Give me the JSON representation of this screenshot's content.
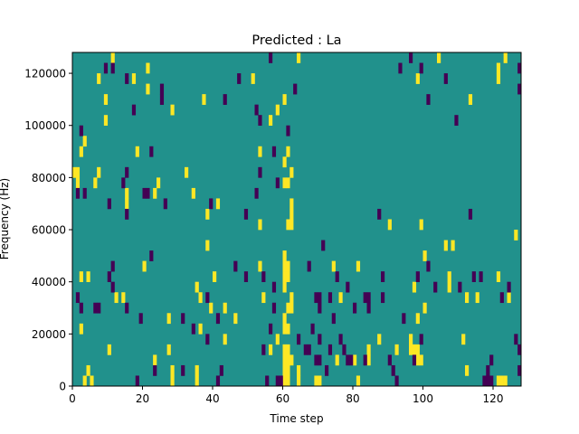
{
  "chart_data": {
    "type": "heatmap",
    "title": "Predicted : La",
    "xlabel": "Time step",
    "ylabel": "Frequency (Hz)",
    "xlim": [
      0,
      128
    ],
    "ylim": [
      0,
      128000
    ],
    "n_time_steps": 128,
    "n_freq_bins": 32,
    "bin_hz": 4000,
    "xticks": [
      0,
      20,
      40,
      60,
      80,
      100,
      120
    ],
    "yticks": [
      0,
      20000,
      40000,
      60000,
      80000,
      100000,
      120000
    ],
    "colormap": {
      "low": "#440154",
      "mid": "#21918c",
      "high": "#fde725"
    },
    "default_level": "mid",
    "high_cells": [
      [
        11,
        31
      ],
      [
        64,
        31
      ],
      [
        104,
        31
      ],
      [
        123,
        31
      ],
      [
        21,
        30
      ],
      [
        121,
        30
      ],
      [
        7,
        29
      ],
      [
        17,
        29
      ],
      [
        51,
        29
      ],
      [
        98,
        29
      ],
      [
        121,
        29
      ],
      [
        21,
        28
      ],
      [
        9,
        27
      ],
      [
        37,
        27
      ],
      [
        60,
        27
      ],
      [
        113,
        27
      ],
      [
        28,
        26
      ],
      [
        58,
        26
      ],
      [
        9,
        25
      ],
      [
        56,
        25
      ],
      [
        3,
        23
      ],
      [
        2,
        22
      ],
      [
        18,
        22
      ],
      [
        53,
        22
      ],
      [
        61,
        22
      ],
      [
        60,
        21
      ],
      [
        0,
        20
      ],
      [
        1,
        20
      ],
      [
        7,
        20
      ],
      [
        32,
        20
      ],
      [
        62,
        20
      ],
      [
        1,
        19
      ],
      [
        6,
        19
      ],
      [
        24,
        19
      ],
      [
        60,
        19
      ],
      [
        61,
        19
      ],
      [
        15,
        18
      ],
      [
        23,
        18
      ],
      [
        34,
        18
      ],
      [
        15,
        17
      ],
      [
        41,
        17
      ],
      [
        62,
        17
      ],
      [
        38,
        16
      ],
      [
        62,
        16
      ],
      [
        62,
        15
      ],
      [
        53,
        15
      ],
      [
        61,
        15
      ],
      [
        90,
        15
      ],
      [
        99,
        15
      ],
      [
        38,
        13
      ],
      [
        106,
        13
      ],
      [
        108,
        13
      ],
      [
        126,
        14
      ],
      [
        100,
        12
      ],
      [
        20,
        11
      ],
      [
        53,
        11
      ],
      [
        60,
        11
      ],
      [
        60,
        12
      ],
      [
        61,
        11
      ],
      [
        74,
        11
      ],
      [
        81,
        11
      ],
      [
        2,
        10
      ],
      [
        4,
        10
      ],
      [
        40,
        10
      ],
      [
        60,
        10
      ],
      [
        61,
        10
      ],
      [
        107,
        10
      ],
      [
        121,
        10
      ],
      [
        35,
        9
      ],
      [
        60,
        9
      ],
      [
        97,
        9
      ],
      [
        107,
        9
      ],
      [
        12,
        8
      ],
      [
        14,
        8
      ],
      [
        36,
        8
      ],
      [
        54,
        8
      ],
      [
        62,
        8
      ],
      [
        76,
        8
      ],
      [
        112,
        8
      ],
      [
        115,
        8
      ],
      [
        124,
        8
      ],
      [
        39,
        7
      ],
      [
        43,
        7
      ],
      [
        61,
        7
      ],
      [
        62,
        7
      ],
      [
        100,
        7
      ],
      [
        27,
        6
      ],
      [
        46,
        6
      ],
      [
        60,
        6
      ],
      [
        98,
        6
      ],
      [
        2,
        5
      ],
      [
        36,
        5
      ],
      [
        60,
        5
      ],
      [
        61,
        5
      ],
      [
        43,
        4
      ],
      [
        58,
        4
      ],
      [
        87,
        4
      ],
      [
        96,
        4
      ],
      [
        111,
        4
      ],
      [
        10,
        3
      ],
      [
        27,
        3
      ],
      [
        56,
        3
      ],
      [
        60,
        3
      ],
      [
        61,
        3
      ],
      [
        84,
        3
      ],
      [
        92,
        3
      ],
      [
        96,
        3
      ],
      [
        97,
        3
      ],
      [
        98,
        3
      ],
      [
        23,
        2
      ],
      [
        60,
        2
      ],
      [
        61,
        2
      ],
      [
        62,
        2
      ],
      [
        75,
        2
      ],
      [
        80,
        2
      ],
      [
        84,
        2
      ],
      [
        98,
        2
      ],
      [
        99,
        2
      ],
      [
        4,
        1
      ],
      [
        28,
        1
      ],
      [
        35,
        1
      ],
      [
        60,
        1
      ],
      [
        61,
        1
      ],
      [
        64,
        1
      ],
      [
        112,
        1
      ],
      [
        3,
        0
      ],
      [
        5,
        0
      ],
      [
        28,
        0
      ],
      [
        35,
        0
      ],
      [
        60,
        0
      ],
      [
        61,
        0
      ],
      [
        64,
        0
      ],
      [
        69,
        0
      ],
      [
        70,
        0
      ],
      [
        81,
        0
      ],
      [
        121,
        0
      ],
      [
        122,
        0
      ],
      [
        123,
        0
      ]
    ],
    "low_cells": [
      [
        56,
        31
      ],
      [
        96,
        31
      ],
      [
        9,
        30
      ],
      [
        11,
        30
      ],
      [
        93,
        30
      ],
      [
        99,
        30
      ],
      [
        127,
        30
      ],
      [
        15,
        29
      ],
      [
        47,
        29
      ],
      [
        106,
        29
      ],
      [
        25,
        28
      ],
      [
        63,
        28
      ],
      [
        127,
        28
      ],
      [
        25,
        27
      ],
      [
        43,
        27
      ],
      [
        101,
        27
      ],
      [
        17,
        26
      ],
      [
        52,
        26
      ],
      [
        53,
        25
      ],
      [
        109,
        25
      ],
      [
        2,
        24
      ],
      [
        61,
        24
      ],
      [
        22,
        22
      ],
      [
        57,
        22
      ],
      [
        15,
        20
      ],
      [
        53,
        20
      ],
      [
        14,
        19
      ],
      [
        58,
        19
      ],
      [
        1,
        18
      ],
      [
        3,
        18
      ],
      [
        20,
        18
      ],
      [
        21,
        18
      ],
      [
        52,
        18
      ],
      [
        10,
        17
      ],
      [
        26,
        17
      ],
      [
        39,
        17
      ],
      [
        15,
        16
      ],
      [
        49,
        16
      ],
      [
        87,
        16
      ],
      [
        113,
        16
      ],
      [
        71,
        13
      ],
      [
        22,
        12
      ],
      [
        11,
        11
      ],
      [
        46,
        11
      ],
      [
        67,
        11
      ],
      [
        101,
        11
      ],
      [
        10,
        10
      ],
      [
        49,
        10
      ],
      [
        54,
        10
      ],
      [
        75,
        10
      ],
      [
        88,
        10
      ],
      [
        98,
        10
      ],
      [
        114,
        10
      ],
      [
        116,
        10
      ],
      [
        11,
        9
      ],
      [
        57,
        9
      ],
      [
        78,
        9
      ],
      [
        103,
        9
      ],
      [
        110,
        9
      ],
      [
        124,
        9
      ],
      [
        1,
        8
      ],
      [
        38,
        8
      ],
      [
        69,
        8
      ],
      [
        70,
        8
      ],
      [
        73,
        8
      ],
      [
        83,
        8
      ],
      [
        84,
        8
      ],
      [
        88,
        8
      ],
      [
        122,
        8
      ],
      [
        2,
        7
      ],
      [
        6,
        7
      ],
      [
        7,
        7
      ],
      [
        15,
        7
      ],
      [
        57,
        7
      ],
      [
        70,
        7
      ],
      [
        80,
        7
      ],
      [
        84,
        7
      ],
      [
        19,
        6
      ],
      [
        31,
        6
      ],
      [
        41,
        6
      ],
      [
        74,
        6
      ],
      [
        94,
        6
      ],
      [
        34,
        5
      ],
      [
        56,
        5
      ],
      [
        68,
        5
      ],
      [
        38,
        4
      ],
      [
        64,
        4
      ],
      [
        70,
        4
      ],
      [
        76,
        4
      ],
      [
        99,
        4
      ],
      [
        126,
        4
      ],
      [
        54,
        3
      ],
      [
        66,
        3
      ],
      [
        67,
        3
      ],
      [
        73,
        3
      ],
      [
        77,
        3
      ],
      [
        127,
        3
      ],
      [
        69,
        2
      ],
      [
        70,
        2
      ],
      [
        78,
        2
      ],
      [
        79,
        2
      ],
      [
        83,
        2
      ],
      [
        90,
        2
      ],
      [
        97,
        2
      ],
      [
        119,
        2
      ],
      [
        23,
        1
      ],
      [
        31,
        1
      ],
      [
        42,
        1
      ],
      [
        72,
        1
      ],
      [
        91,
        1
      ],
      [
        118,
        1
      ],
      [
        127,
        1
      ],
      [
        18,
        0
      ],
      [
        41,
        0
      ],
      [
        55,
        0
      ],
      [
        58,
        0
      ],
      [
        59,
        0
      ],
      [
        92,
        0
      ],
      [
        117,
        0
      ],
      [
        118,
        0
      ],
      [
        119,
        0
      ]
    ]
  }
}
